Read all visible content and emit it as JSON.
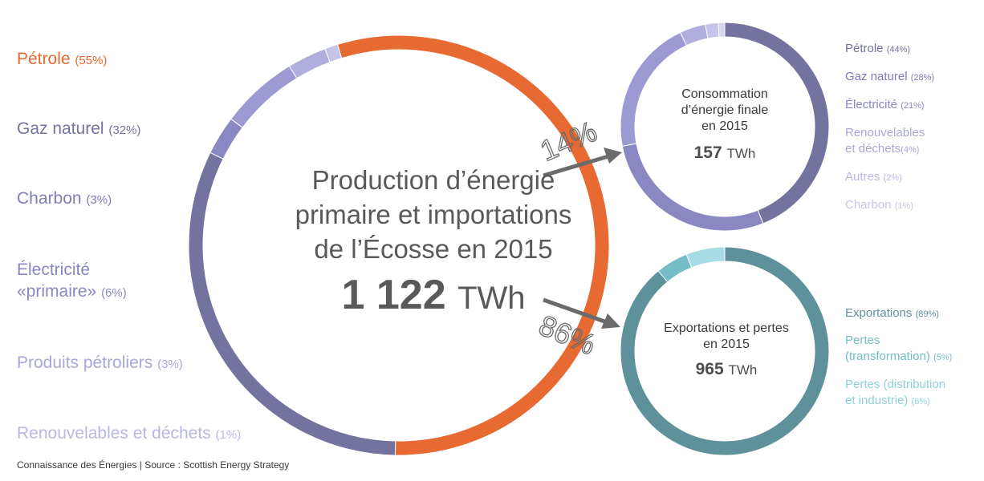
{
  "colors": {
    "orange": "#e66a32",
    "purple1": "#74729e",
    "purple2": "#8a87c2",
    "purple3": "#9d9ad3",
    "purple4": "#b0aedd",
    "purple5": "#c6c4e8",
    "teal": "#5e9199",
    "teal2": "#74bcc6",
    "teal3": "#a6dce4",
    "arrow": "#6b6b6b"
  },
  "main": {
    "title_line1": "Production d’énergie",
    "title_line2": "primaire et importations",
    "title_line3": "de l’Écosse en 2015",
    "total_value": "1 122",
    "total_unit": "TWh"
  },
  "consumption": {
    "title_line1": "Consommation",
    "title_line2": "d’énergie finale",
    "title_line3": "en 2015",
    "total_value": "157",
    "total_unit": "TWh"
  },
  "exports": {
    "title_line1": "Exportations et pertes",
    "title_line2": "en 2015",
    "total_value": "965",
    "total_unit": "TWh"
  },
  "arrows": {
    "upper_label": "14%",
    "lower_label": "86%"
  },
  "footer": "Connaissance des Énergies | Source : Scottish Energy Strategy",
  "chart_data": [
    {
      "type": "pie",
      "title": "Production d’énergie primaire et importations de l’Écosse en 2015",
      "total": "1 122 TWh",
      "categories": [
        "Pétrole",
        "Gaz naturel",
        "Charbon",
        "Électricité «primaire»",
        "Produits pétroliers",
        "Renouvelables et déchets"
      ],
      "labels": [
        "Pétrole",
        "Gaz naturel",
        "Charbon",
        "Électricité",
        "«primaire»",
        "Produits pétroliers",
        "Renouvelables et déchets"
      ],
      "pct_labels": [
        "(55%)",
        "(32%)",
        "(3%)",
        "(6%)",
        "(3%)",
        "(1%)"
      ],
      "values": [
        55,
        32,
        3,
        6,
        3,
        1
      ]
    },
    {
      "type": "pie",
      "title": "Consommation d’énergie finale en 2015",
      "total": "157 TWh",
      "categories": [
        "Pétrole",
        "Gaz naturel",
        "Électricité",
        "Renouvelables et déchets",
        "Autres",
        "Charbon"
      ],
      "labels": [
        "Pétrole",
        "Gaz naturel",
        "Électricité",
        "Renouvelables",
        "et déchets",
        "Autres",
        "Charbon"
      ],
      "pct_labels": [
        "(44%)",
        "(28%)",
        "(21%)",
        "(4%)",
        "(2%)",
        "(1%)"
      ],
      "values": [
        44,
        28,
        21,
        4,
        2,
        1
      ]
    },
    {
      "type": "pie",
      "title": "Exportations et pertes en 2015",
      "total": "965 TWh",
      "categories": [
        "Exportations",
        "Pertes (transformation)",
        "Pertes (distribution et industrie)"
      ],
      "labels": [
        "Exportations",
        "Pertes",
        "(transformation)",
        "Pertes (distribution",
        "et industrie)"
      ],
      "pct_labels": [
        "(89%)",
        "(5%)",
        "(6%)"
      ],
      "values": [
        89,
        5,
        6
      ]
    }
  ]
}
